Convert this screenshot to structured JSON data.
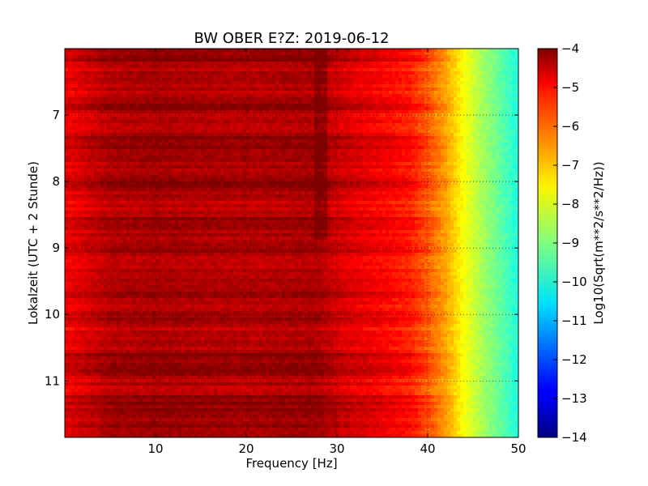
{
  "chart_data": {
    "type": "heatmap",
    "title": "BW OBER E?Z: 2019-06-12",
    "xlabel": "Frequency [Hz]",
    "ylabel": "Lokalzeit (UTC + 2 Stunde)",
    "xlim": [
      0,
      50
    ],
    "ylim": [
      11.85,
      6.0
    ],
    "y_inverted": true,
    "xticks": [
      10,
      20,
      30,
      40,
      50
    ],
    "xtick_labels": [
      "10",
      "20",
      "30",
      "40",
      "50"
    ],
    "yticks": [
      7,
      8,
      9,
      10,
      11
    ],
    "ytick_labels": [
      "7",
      "8",
      "9",
      "10",
      "11"
    ],
    "grid": true,
    "colormap": "jet",
    "colorbar": {
      "label": "Log10(Sqrt(m**2/s**2/Hz))",
      "range": [
        -14,
        -4
      ],
      "ticks": [
        -4,
        -5,
        -6,
        -7,
        -8,
        -9,
        -10,
        -11,
        -12,
        -13,
        -14
      ],
      "tick_labels": [
        "−4",
        "−5",
        "−6",
        "−7",
        "−8",
        "−9",
        "−10",
        "−11",
        "−12",
        "−13",
        "−14"
      ]
    },
    "spectrum_profile": {
      "frequency_hz": [
        0,
        5,
        10,
        20,
        28,
        30,
        35,
        38,
        40,
        42,
        44,
        46,
        48,
        50
      ],
      "log10_amplitude": [
        -5.2,
        -4.6,
        -4.5,
        -4.6,
        -4.5,
        -4.9,
        -5.3,
        -5.6,
        -6.2,
        -6.9,
        -7.8,
        -8.6,
        -9.3,
        -10.0
      ]
    },
    "strong_time_bands_hours": [
      {
        "start": 6.0,
        "end": 6.2,
        "level": -4.4
      },
      {
        "start": 6.75,
        "end": 6.95,
        "level": -4.4
      },
      {
        "start": 7.3,
        "end": 7.7,
        "level": -4.2
      },
      {
        "start": 7.9,
        "end": 8.15,
        "level": -4.3
      },
      {
        "start": 8.55,
        "end": 8.75,
        "level": -4.4
      },
      {
        "start": 8.9,
        "end": 9.1,
        "level": -4.5
      },
      {
        "start": 9.6,
        "end": 9.75,
        "level": -4.4
      },
      {
        "start": 10.0,
        "end": 10.1,
        "level": -4.3
      },
      {
        "start": 10.6,
        "end": 10.9,
        "level": -4.3
      },
      {
        "start": 11.2,
        "end": 11.7,
        "level": -4.2
      }
    ]
  }
}
